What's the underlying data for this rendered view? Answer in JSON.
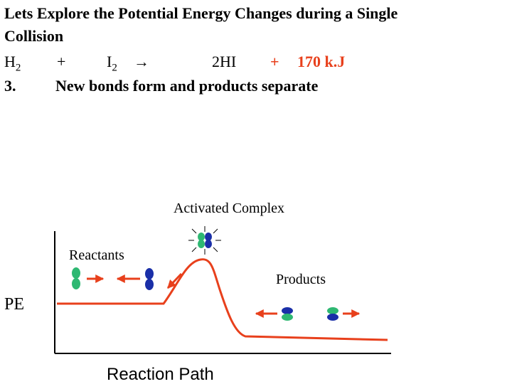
{
  "title_line_1": "Lets Explore the Potential Energy Changes during a Single",
  "title_line_2": "Collision",
  "equation": {
    "reactant1": "H",
    "reactant1_sub": "2",
    "plus1": "+",
    "reactant2": "I",
    "reactant2_sub": "2",
    "arrow": "→",
    "product": "2HI",
    "plus2": "+",
    "energy": "170 k.J"
  },
  "step": {
    "number": "3.",
    "text": "New bonds form and products separate"
  },
  "diagram": {
    "activated_complex": "Activated Complex",
    "reactants": "Reactants",
    "products": "Products",
    "y_axis": "PE",
    "x_axis": "Reaction Path"
  }
}
